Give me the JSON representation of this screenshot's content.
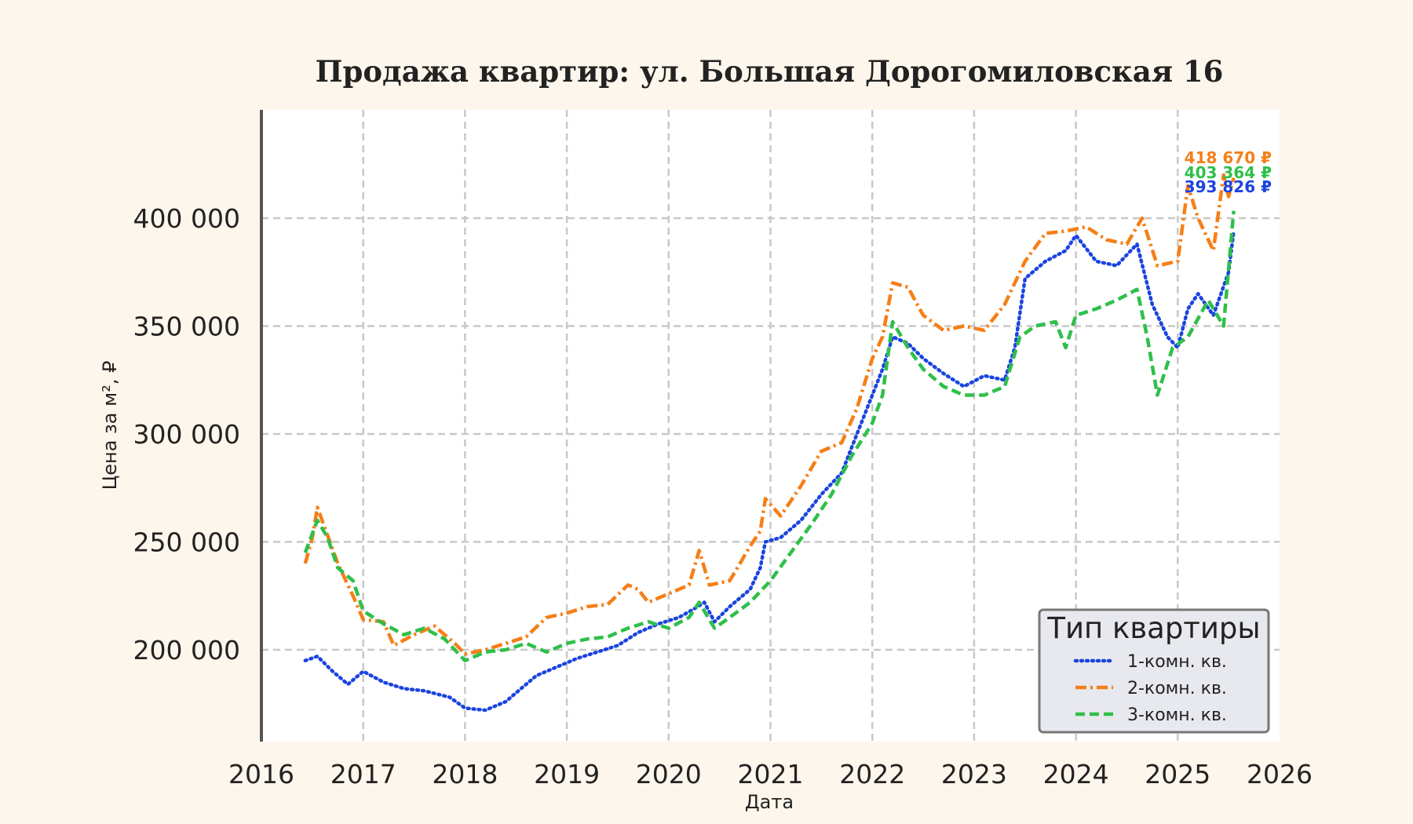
{
  "chart_data": {
    "type": "line",
    "title": "Продажа квартир: ул. Большая Дорогомиловская 16",
    "xlabel": "Дата",
    "ylabel": "Цена за м², ₽",
    "xlim": [
      2016,
      2026
    ],
    "ylim": [
      160000,
      450000
    ],
    "x_ticks": [
      "2016",
      "2017",
      "2018",
      "2019",
      "2020",
      "2021",
      "2022",
      "2023",
      "2024",
      "2025",
      "2026"
    ],
    "y_ticks": [
      "200 000",
      "250 000",
      "300 000",
      "350 000",
      "400 000"
    ],
    "grid": true,
    "legend": {
      "title": "Тип квартиры",
      "position": "bottom-right"
    },
    "series": [
      {
        "name": "1-комн. кв.",
        "color": "#1a44e0",
        "style": "dotted",
        "end_label": "393 826 ₽",
        "points": [
          [
            2016.43,
            195000
          ],
          [
            2016.55,
            197000
          ],
          [
            2016.7,
            190000
          ],
          [
            2016.85,
            184000
          ],
          [
            2017.0,
            190000
          ],
          [
            2017.2,
            185000
          ],
          [
            2017.4,
            182000
          ],
          [
            2017.6,
            181000
          ],
          [
            2017.85,
            178000
          ],
          [
            2018.0,
            173000
          ],
          [
            2018.2,
            172000
          ],
          [
            2018.4,
            176000
          ],
          [
            2018.55,
            182000
          ],
          [
            2018.7,
            188000
          ],
          [
            2018.9,
            192000
          ],
          [
            2019.1,
            196000
          ],
          [
            2019.3,
            199000
          ],
          [
            2019.5,
            202000
          ],
          [
            2019.7,
            208000
          ],
          [
            2019.9,
            212000
          ],
          [
            2020.1,
            215000
          ],
          [
            2020.25,
            219000
          ],
          [
            2020.35,
            222000
          ],
          [
            2020.45,
            213000
          ],
          [
            2020.6,
            220000
          ],
          [
            2020.8,
            228000
          ],
          [
            2020.9,
            238000
          ],
          [
            2020.95,
            250000
          ],
          [
            2021.1,
            252000
          ],
          [
            2021.3,
            260000
          ],
          [
            2021.5,
            272000
          ],
          [
            2021.7,
            282000
          ],
          [
            2021.85,
            300000
          ],
          [
            2022.0,
            318000
          ],
          [
            2022.1,
            330000
          ],
          [
            2022.2,
            345000
          ],
          [
            2022.35,
            342000
          ],
          [
            2022.5,
            335000
          ],
          [
            2022.7,
            328000
          ],
          [
            2022.9,
            322000
          ],
          [
            2023.1,
            327000
          ],
          [
            2023.3,
            325000
          ],
          [
            2023.4,
            340000
          ],
          [
            2023.5,
            372000
          ],
          [
            2023.7,
            380000
          ],
          [
            2023.9,
            385000
          ],
          [
            2024.0,
            392000
          ],
          [
            2024.2,
            380000
          ],
          [
            2024.4,
            378000
          ],
          [
            2024.6,
            388000
          ],
          [
            2024.75,
            360000
          ],
          [
            2024.9,
            345000
          ],
          [
            2025.0,
            340000
          ],
          [
            2025.1,
            358000
          ],
          [
            2025.2,
            365000
          ],
          [
            2025.35,
            355000
          ],
          [
            2025.5,
            375000
          ],
          [
            2025.55,
            393826
          ]
        ]
      },
      {
        "name": "2-комн. кв.",
        "color": "#f57f17",
        "style": "dashdot",
        "end_label": "418 670 ₽",
        "points": [
          [
            2016.43,
            240000
          ],
          [
            2016.5,
            252000
          ],
          [
            2016.55,
            266000
          ],
          [
            2016.65,
            253000
          ],
          [
            2016.75,
            240000
          ],
          [
            2016.9,
            225000
          ],
          [
            2017.0,
            214000
          ],
          [
            2017.2,
            213000
          ],
          [
            2017.3,
            202000
          ],
          [
            2017.5,
            207000
          ],
          [
            2017.7,
            211000
          ],
          [
            2017.9,
            203000
          ],
          [
            2018.0,
            198000
          ],
          [
            2018.2,
            200000
          ],
          [
            2018.4,
            203000
          ],
          [
            2018.6,
            206000
          ],
          [
            2018.8,
            215000
          ],
          [
            2019.0,
            217000
          ],
          [
            2019.2,
            220000
          ],
          [
            2019.4,
            221000
          ],
          [
            2019.6,
            230000
          ],
          [
            2019.7,
            228000
          ],
          [
            2019.8,
            222000
          ],
          [
            2020.0,
            226000
          ],
          [
            2020.2,
            230000
          ],
          [
            2020.3,
            246000
          ],
          [
            2020.4,
            230000
          ],
          [
            2020.6,
            232000
          ],
          [
            2020.8,
            248000
          ],
          [
            2020.9,
            255000
          ],
          [
            2020.95,
            270000
          ],
          [
            2021.1,
            262000
          ],
          [
            2021.3,
            276000
          ],
          [
            2021.5,
            292000
          ],
          [
            2021.7,
            296000
          ],
          [
            2021.85,
            312000
          ],
          [
            2022.0,
            335000
          ],
          [
            2022.1,
            345000
          ],
          [
            2022.2,
            370000
          ],
          [
            2022.35,
            368000
          ],
          [
            2022.5,
            355000
          ],
          [
            2022.7,
            348000
          ],
          [
            2022.9,
            350000
          ],
          [
            2023.1,
            348000
          ],
          [
            2023.3,
            360000
          ],
          [
            2023.4,
            370000
          ],
          [
            2023.5,
            380000
          ],
          [
            2023.7,
            393000
          ],
          [
            2023.9,
            394000
          ],
          [
            2024.1,
            396000
          ],
          [
            2024.3,
            390000
          ],
          [
            2024.5,
            388000
          ],
          [
            2024.65,
            400000
          ],
          [
            2024.8,
            378000
          ],
          [
            2025.0,
            380000
          ],
          [
            2025.1,
            415000
          ],
          [
            2025.2,
            400000
          ],
          [
            2025.35,
            385000
          ],
          [
            2025.45,
            420000
          ],
          [
            2025.5,
            410000
          ],
          [
            2025.55,
            418670
          ]
        ]
      },
      {
        "name": "3-комн. кв.",
        "color": "#2ec04a",
        "style": "dashed",
        "end_label": "403 364 ₽",
        "points": [
          [
            2016.43,
            245000
          ],
          [
            2016.55,
            260000
          ],
          [
            2016.65,
            252000
          ],
          [
            2016.75,
            238000
          ],
          [
            2016.9,
            232000
          ],
          [
            2017.0,
            218000
          ],
          [
            2017.2,
            212000
          ],
          [
            2017.4,
            207000
          ],
          [
            2017.6,
            210000
          ],
          [
            2017.8,
            205000
          ],
          [
            2018.0,
            195000
          ],
          [
            2018.2,
            199000
          ],
          [
            2018.4,
            200000
          ],
          [
            2018.6,
            203000
          ],
          [
            2018.8,
            199000
          ],
          [
            2019.0,
            203000
          ],
          [
            2019.2,
            205000
          ],
          [
            2019.4,
            206000
          ],
          [
            2019.6,
            210000
          ],
          [
            2019.8,
            213000
          ],
          [
            2020.0,
            210000
          ],
          [
            2020.2,
            215000
          ],
          [
            2020.3,
            222000
          ],
          [
            2020.45,
            210000
          ],
          [
            2020.6,
            215000
          ],
          [
            2020.8,
            222000
          ],
          [
            2021.0,
            232000
          ],
          [
            2021.2,
            245000
          ],
          [
            2021.4,
            258000
          ],
          [
            2021.6,
            272000
          ],
          [
            2021.8,
            290000
          ],
          [
            2022.0,
            305000
          ],
          [
            2022.1,
            318000
          ],
          [
            2022.2,
            352000
          ],
          [
            2022.35,
            340000
          ],
          [
            2022.5,
            330000
          ],
          [
            2022.7,
            322000
          ],
          [
            2022.9,
            318000
          ],
          [
            2023.1,
            318000
          ],
          [
            2023.3,
            322000
          ],
          [
            2023.45,
            345000
          ],
          [
            2023.6,
            350000
          ],
          [
            2023.8,
            352000
          ],
          [
            2023.9,
            340000
          ],
          [
            2024.0,
            355000
          ],
          [
            2024.2,
            358000
          ],
          [
            2024.4,
            362000
          ],
          [
            2024.6,
            367000
          ],
          [
            2024.7,
            345000
          ],
          [
            2024.8,
            318000
          ],
          [
            2024.95,
            340000
          ],
          [
            2025.1,
            345000
          ],
          [
            2025.3,
            362000
          ],
          [
            2025.45,
            350000
          ],
          [
            2025.55,
            403364
          ]
        ]
      }
    ]
  }
}
